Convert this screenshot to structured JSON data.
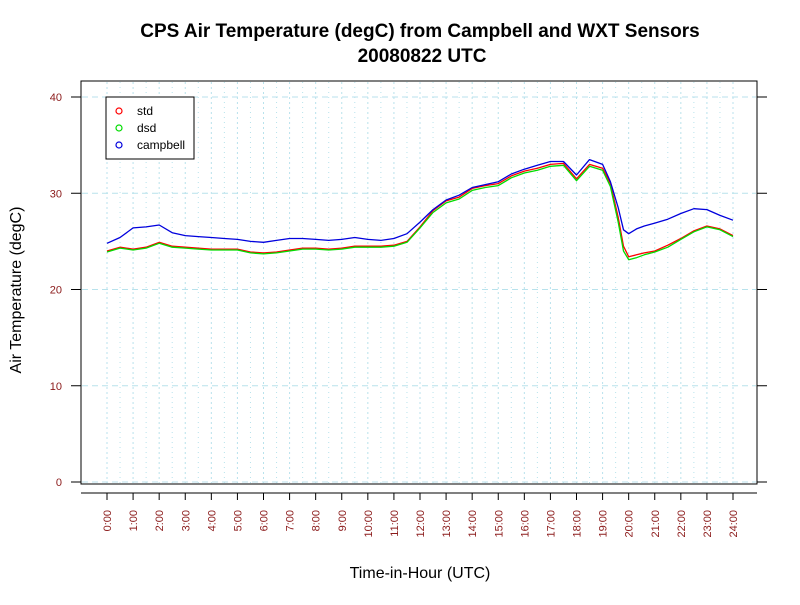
{
  "chart_data": {
    "type": "line",
    "title": "CPS Air Temperature (degC) from Campbell and WXT Sensors",
    "subtitle": "20080822  UTC",
    "xlabel": "Time-in-Hour (UTC)",
    "ylabel": "Air Temperature (degC)",
    "xlim": [
      0,
      24
    ],
    "ylim": [
      0,
      40
    ],
    "x_ticks": [
      0,
      1,
      2,
      3,
      4,
      5,
      6,
      7,
      8,
      9,
      10,
      11,
      12,
      13,
      14,
      15,
      16,
      17,
      18,
      19,
      20,
      21,
      22,
      23,
      24
    ],
    "x_tick_labels": [
      "0:00",
      "1:00",
      "2:00",
      "3:00",
      "4:00",
      "5:00",
      "6:00",
      "7:00",
      "8:00",
      "9:00",
      "10:00",
      "11:00",
      "12:00",
      "13:00",
      "14:00",
      "15:00",
      "16:00",
      "17:00",
      "18:00",
      "19:00",
      "20:00",
      "21:00",
      "22:00",
      "23:00",
      "24:00"
    ],
    "y_ticks": [
      0,
      10,
      20,
      30,
      40
    ],
    "grid": true,
    "legend_position": "top-left",
    "x": [
      0,
      0.5,
      1,
      1.5,
      2,
      2.5,
      3,
      3.5,
      4,
      4.5,
      5,
      5.5,
      6,
      6.5,
      7,
      7.5,
      8,
      8.5,
      9,
      9.5,
      10,
      10.5,
      11,
      11.5,
      12,
      12.5,
      13,
      13.5,
      14,
      14.5,
      15,
      15.5,
      16,
      16.5,
      17,
      17.5,
      18,
      18.5,
      19,
      19.3,
      19.6,
      19.8,
      20,
      20.3,
      20.6,
      21,
      21.5,
      22,
      22.5,
      23,
      23.5,
      24
    ],
    "series": [
      {
        "name": "std",
        "color": "#ff0000",
        "values": [
          24.0,
          24.4,
          24.2,
          24.4,
          24.9,
          24.5,
          24.4,
          24.3,
          24.2,
          24.2,
          24.2,
          23.9,
          23.8,
          23.9,
          24.1,
          24.3,
          24.3,
          24.2,
          24.3,
          24.5,
          24.5,
          24.5,
          24.6,
          25.0,
          26.5,
          28.2,
          29.2,
          29.6,
          30.5,
          30.8,
          31.0,
          31.8,
          32.3,
          32.6,
          33.0,
          33.1,
          31.5,
          33.0,
          32.6,
          31.0,
          27.5,
          24.5,
          23.4,
          23.6,
          23.8,
          24.0,
          24.6,
          25.3,
          26.1,
          26.6,
          26.3,
          25.6
        ]
      },
      {
        "name": "dsd",
        "color": "#00dd00",
        "values": [
          23.9,
          24.3,
          24.1,
          24.3,
          24.8,
          24.4,
          24.3,
          24.2,
          24.1,
          24.1,
          24.1,
          23.8,
          23.7,
          23.8,
          24.0,
          24.2,
          24.2,
          24.1,
          24.2,
          24.4,
          24.4,
          24.4,
          24.5,
          24.9,
          26.4,
          28.0,
          29.0,
          29.4,
          30.3,
          30.6,
          30.8,
          31.6,
          32.1,
          32.4,
          32.8,
          32.9,
          31.3,
          32.8,
          32.4,
          30.7,
          27.0,
          24.0,
          23.1,
          23.3,
          23.6,
          23.9,
          24.4,
          25.2,
          26.0,
          26.5,
          26.2,
          25.5
        ]
      },
      {
        "name": "campbell",
        "color": "#0000dd",
        "values": [
          24.8,
          25.4,
          26.4,
          26.5,
          26.7,
          25.9,
          25.6,
          25.5,
          25.4,
          25.3,
          25.2,
          25.0,
          24.9,
          25.1,
          25.3,
          25.3,
          25.2,
          25.1,
          25.2,
          25.4,
          25.2,
          25.1,
          25.3,
          25.8,
          27.0,
          28.3,
          29.3,
          29.8,
          30.6,
          30.9,
          31.2,
          32.0,
          32.5,
          32.9,
          33.3,
          33.3,
          31.9,
          33.5,
          33.0,
          31.2,
          28.5,
          26.2,
          25.8,
          26.3,
          26.6,
          26.9,
          27.3,
          27.9,
          28.4,
          28.3,
          27.7,
          27.2
        ]
      }
    ]
  }
}
